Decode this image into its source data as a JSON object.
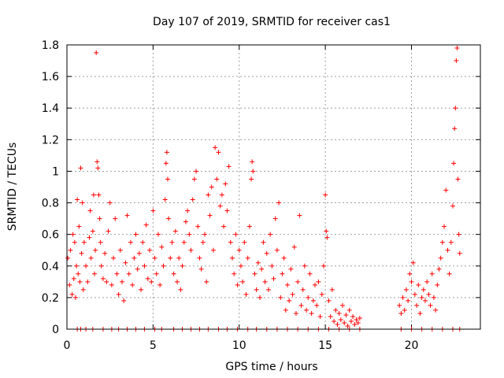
{
  "chart_data": {
    "type": "scatter",
    "title": "Day 107 of 2019, SRMTID for receiver cas1",
    "xlabel": "GPS time / hours",
    "ylabel": "SRMTID / TECUs",
    "xlim": [
      0,
      24
    ],
    "ylim": [
      0,
      1.8
    ],
    "xticks": [
      0,
      5,
      10,
      15,
      20
    ],
    "xtick_labels": [
      "0",
      "5",
      "10",
      "15",
      "20"
    ],
    "yticks": [
      0,
      0.2,
      0.4,
      0.6,
      0.8,
      1.0,
      1.2,
      1.4,
      1.6,
      1.8
    ],
    "ytick_labels": [
      "0",
      "0.2",
      "0.4",
      "0.6",
      "0.8",
      "1",
      "1.2",
      "1.4",
      "1.6",
      "1.8"
    ],
    "grid": true,
    "marker": "+",
    "series_color": "#ff0000",
    "series": [
      {
        "name": "SRMTID",
        "points": [
          [
            0.05,
            0.45
          ],
          [
            0.15,
            0.28
          ],
          [
            0.2,
            0.5
          ],
          [
            0.3,
            0.22
          ],
          [
            0.35,
            0.6
          ],
          [
            0.4,
            0.32
          ],
          [
            0.45,
            0.55
          ],
          [
            0.5,
            0.2
          ],
          [
            0.55,
            0.4
          ],
          [
            0.6,
            0.82
          ],
          [
            0.65,
            0.35
          ],
          [
            0.7,
            0.65
          ],
          [
            0.75,
            0.3
          ],
          [
            0.8,
            1.02
          ],
          [
            0.85,
            0.48
          ],
          [
            0.9,
            0.8
          ],
          [
            0.95,
            0.25
          ],
          [
            1.0,
            0.55
          ],
          [
            1.1,
            0.4
          ],
          [
            1.2,
            0.3
          ],
          [
            1.3,
            0.58
          ],
          [
            1.35,
            0.75
          ],
          [
            1.4,
            0.45
          ],
          [
            1.5,
            0.62
          ],
          [
            1.55,
            0.85
          ],
          [
            1.6,
            0.35
          ],
          [
            1.65,
            0.5
          ],
          [
            1.7,
            1.75
          ],
          [
            1.75,
            1.06
          ],
          [
            1.8,
            1.02
          ],
          [
            1.85,
            0.85
          ],
          [
            1.9,
            0.7
          ],
          [
            1.95,
            0.55
          ],
          [
            2.0,
            0.4
          ],
          [
            2.1,
            0.32
          ],
          [
            2.2,
            0.48
          ],
          [
            2.3,
            0.3
          ],
          [
            2.4,
            0.62
          ],
          [
            2.5,
            0.8
          ],
          [
            2.6,
            0.28
          ],
          [
            2.7,
            0.45
          ],
          [
            2.8,
            0.7
          ],
          [
            2.9,
            0.35
          ],
          [
            3.0,
            0.22
          ],
          [
            3.1,
            0.5
          ],
          [
            3.2,
            0.3
          ],
          [
            3.3,
            0.18
          ],
          [
            3.4,
            0.42
          ],
          [
            3.5,
            0.72
          ],
          [
            3.6,
            0.35
          ],
          [
            3.7,
            0.55
          ],
          [
            3.8,
            0.28
          ],
          [
            3.9,
            0.45
          ],
          [
            4.0,
            0.6
          ],
          [
            4.1,
            0.38
          ],
          [
            4.2,
            0.48
          ],
          [
            4.3,
            0.25
          ],
          [
            4.4,
            0.55
          ],
          [
            4.5,
            0.4
          ],
          [
            4.6,
            0.66
          ],
          [
            4.7,
            0.32
          ],
          [
            4.8,
            0.5
          ],
          [
            4.9,
            0.3
          ],
          [
            5.0,
            0.75
          ],
          [
            5.1,
            0.45
          ],
          [
            5.2,
            0.35
          ],
          [
            5.3,
            0.6
          ],
          [
            5.4,
            0.28
          ],
          [
            5.5,
            0.52
          ],
          [
            5.6,
            0.4
          ],
          [
            5.7,
            0.82
          ],
          [
            5.75,
            1.05
          ],
          [
            5.8,
            1.12
          ],
          [
            5.85,
            0.95
          ],
          [
            5.9,
            0.7
          ],
          [
            6.0,
            0.45
          ],
          [
            6.1,
            0.55
          ],
          [
            6.2,
            0.35
          ],
          [
            6.3,
            0.62
          ],
          [
            6.4,
            0.3
          ],
          [
            6.5,
            0.45
          ],
          [
            6.6,
            0.25
          ],
          [
            6.7,
            0.4
          ],
          [
            6.8,
            0.55
          ],
          [
            6.9,
            0.68
          ],
          [
            7.0,
            0.75
          ],
          [
            7.1,
            0.6
          ],
          [
            7.2,
            0.5
          ],
          [
            7.3,
            0.82
          ],
          [
            7.4,
            0.95
          ],
          [
            7.5,
            1.0
          ],
          [
            7.6,
            0.65
          ],
          [
            7.7,
            0.45
          ],
          [
            7.8,
            0.38
          ],
          [
            7.9,
            0.55
          ],
          [
            8.0,
            0.6
          ],
          [
            8.1,
            0.3
          ],
          [
            8.2,
            0.85
          ],
          [
            8.3,
            0.72
          ],
          [
            8.4,
            0.9
          ],
          [
            8.5,
            0.5
          ],
          [
            8.6,
            1.15
          ],
          [
            8.7,
            0.95
          ],
          [
            8.8,
            1.12
          ],
          [
            8.9,
            0.78
          ],
          [
            9.0,
            0.85
          ],
          [
            9.1,
            0.65
          ],
          [
            9.2,
            0.92
          ],
          [
            9.3,
            0.75
          ],
          [
            9.4,
            1.03
          ],
          [
            9.5,
            0.55
          ],
          [
            9.6,
            0.45
          ],
          [
            9.7,
            0.35
          ],
          [
            9.8,
            0.6
          ],
          [
            9.9,
            0.28
          ],
          [
            10.0,
            0.5
          ],
          [
            10.1,
            0.4
          ],
          [
            10.2,
            0.3
          ],
          [
            10.3,
            0.55
          ],
          [
            10.4,
            0.22
          ],
          [
            10.5,
            0.45
          ],
          [
            10.6,
            0.65
          ],
          [
            10.7,
            0.95
          ],
          [
            10.75,
            1.06
          ],
          [
            10.8,
            1.0
          ],
          [
            10.9,
            0.35
          ],
          [
            11.0,
            0.25
          ],
          [
            11.1,
            0.42
          ],
          [
            11.2,
            0.2
          ],
          [
            11.3,
            0.38
          ],
          [
            11.4,
            0.55
          ],
          [
            11.5,
            0.3
          ],
          [
            11.6,
            0.48
          ],
          [
            11.7,
            0.25
          ],
          [
            11.8,
            0.6
          ],
          [
            11.9,
            0.4
          ],
          [
            12.0,
            0.32
          ],
          [
            12.1,
            0.7
          ],
          [
            12.2,
            0.5
          ],
          [
            12.3,
            0.8
          ],
          [
            12.4,
            0.2
          ],
          [
            12.5,
            0.35
          ],
          [
            12.6,
            0.45
          ],
          [
            12.7,
            0.12
          ],
          [
            12.8,
            0.28
          ],
          [
            12.9,
            0.18
          ],
          [
            13.0,
            0.38
          ],
          [
            13.1,
            0.22
          ],
          [
            13.2,
            0.52
          ],
          [
            13.3,
            0.1
          ],
          [
            13.4,
            0.3
          ],
          [
            13.5,
            0.72
          ],
          [
            13.6,
            0.15
          ],
          [
            13.7,
            0.25
          ],
          [
            13.8,
            0.4
          ],
          [
            13.9,
            0.12
          ],
          [
            14.0,
            0.2
          ],
          [
            14.1,
            0.35
          ],
          [
            14.2,
            0.1
          ],
          [
            14.3,
            0.18
          ],
          [
            14.4,
            0.28
          ],
          [
            14.5,
            0.15
          ],
          [
            14.6,
            0.3
          ],
          [
            14.7,
            0.08
          ],
          [
            14.8,
            0.22
          ],
          [
            14.9,
            0.4
          ],
          [
            15.0,
            0.85
          ],
          [
            15.05,
            0.62
          ],
          [
            15.1,
            0.58
          ],
          [
            15.2,
            0.18
          ],
          [
            15.3,
            0.08
          ],
          [
            15.4,
            0.25
          ],
          [
            15.5,
            0.05
          ],
          [
            15.6,
            0.12
          ],
          [
            15.7,
            0.03
          ],
          [
            15.8,
            0.1
          ],
          [
            15.9,
            0.06
          ],
          [
            16.0,
            0.15
          ],
          [
            16.1,
            0.04
          ],
          [
            16.2,
            0.09
          ],
          [
            16.3,
            0.02
          ],
          [
            16.4,
            0.12
          ],
          [
            16.5,
            0.05
          ],
          [
            16.6,
            0.08
          ],
          [
            16.7,
            0.03
          ],
          [
            16.8,
            0.06
          ],
          [
            16.9,
            0.04
          ],
          [
            17.0,
            0.07
          ],
          [
            19.3,
            0.15
          ],
          [
            19.4,
            0.1
          ],
          [
            19.5,
            0.2
          ],
          [
            19.6,
            0.12
          ],
          [
            19.7,
            0.25
          ],
          [
            19.8,
            0.18
          ],
          [
            19.9,
            0.35
          ],
          [
            20.0,
            0.3
          ],
          [
            20.1,
            0.42
          ],
          [
            20.2,
            0.22
          ],
          [
            20.3,
            0.15
          ],
          [
            20.4,
            0.28
          ],
          [
            20.5,
            0.1
          ],
          [
            20.6,
            0.2
          ],
          [
            20.7,
            0.25
          ],
          [
            20.8,
            0.18
          ],
          [
            20.9,
            0.3
          ],
          [
            21.0,
            0.22
          ],
          [
            21.1,
            0.15
          ],
          [
            21.2,
            0.35
          ],
          [
            21.3,
            0.2
          ],
          [
            21.4,
            0.12
          ],
          [
            21.5,
            0.28
          ],
          [
            21.6,
            0.38
          ],
          [
            21.7,
            0.45
          ],
          [
            21.8,
            0.55
          ],
          [
            21.9,
            0.65
          ],
          [
            22.0,
            0.88
          ],
          [
            22.1,
            0.5
          ],
          [
            22.2,
            0.35
          ],
          [
            22.3,
            0.55
          ],
          [
            22.4,
            0.78
          ],
          [
            22.45,
            1.05
          ],
          [
            22.5,
            1.27
          ],
          [
            22.55,
            1.4
          ],
          [
            22.6,
            1.7
          ],
          [
            22.65,
            1.78
          ],
          [
            22.7,
            0.95
          ],
          [
            22.75,
            0.6
          ],
          [
            22.8,
            0.48
          ]
        ],
        "zero_points": [
          [
            0.6,
            0
          ],
          [
            0.8,
            0
          ],
          [
            1.1,
            0
          ],
          [
            1.5,
            0
          ],
          [
            2.1,
            0
          ],
          [
            2.6,
            0
          ],
          [
            3.0,
            0
          ],
          [
            3.5,
            0
          ],
          [
            4.0,
            0
          ],
          [
            4.5,
            0
          ],
          [
            5.1,
            0
          ],
          [
            5.5,
            0
          ],
          [
            6.2,
            0
          ],
          [
            6.7,
            0
          ],
          [
            7.2,
            0
          ],
          [
            7.7,
            0
          ],
          [
            8.2,
            0
          ],
          [
            8.8,
            0
          ],
          [
            9.3,
            0
          ],
          [
            9.9,
            0
          ],
          [
            10.5,
            0
          ],
          [
            11.0,
            0
          ],
          [
            11.6,
            0
          ],
          [
            12.2,
            0
          ],
          [
            12.8,
            0
          ],
          [
            13.4,
            0
          ],
          [
            14.0,
            0
          ],
          [
            14.6,
            0
          ],
          [
            15.2,
            0
          ],
          [
            15.8,
            0
          ],
          [
            16.4,
            0
          ],
          [
            17.0,
            0
          ],
          [
            19.4,
            0
          ],
          [
            20.0,
            0
          ],
          [
            20.6,
            0
          ],
          [
            21.2,
            0
          ],
          [
            21.8,
            0
          ],
          [
            22.4,
            0
          ],
          [
            22.8,
            0
          ]
        ]
      }
    ]
  }
}
